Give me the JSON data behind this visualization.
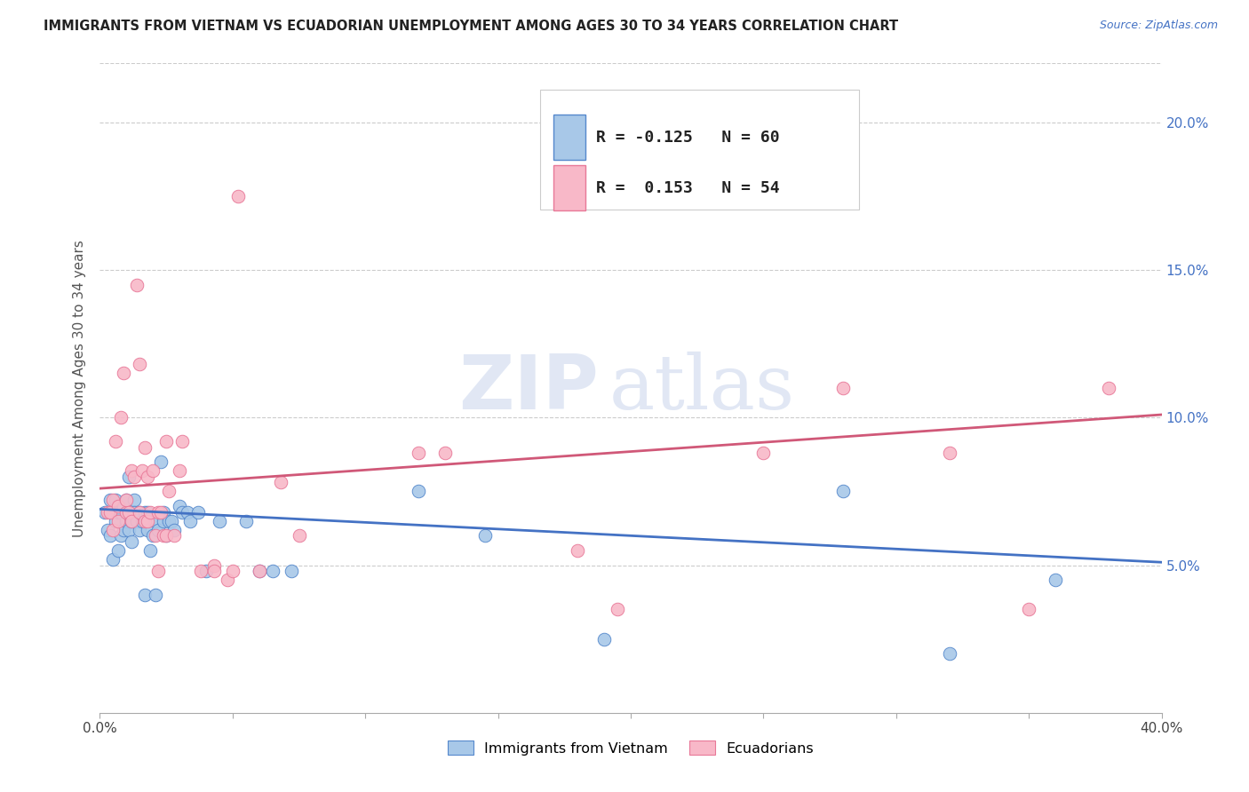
{
  "title": "IMMIGRANTS FROM VIETNAM VS ECUADORIAN UNEMPLOYMENT AMONG AGES 30 TO 34 YEARS CORRELATION CHART",
  "source": "Source: ZipAtlas.com",
  "ylabel": "Unemployment Among Ages 30 to 34 years",
  "ylabel_right_ticks": [
    "20.0%",
    "15.0%",
    "10.0%",
    "5.0%"
  ],
  "ylabel_right_vals": [
    0.2,
    0.15,
    0.1,
    0.05
  ],
  "xlim": [
    0.0,
    0.4
  ],
  "ylim": [
    0.0,
    0.22
  ],
  "watermark_zip": "ZIP",
  "watermark_atlas": "atlas",
  "legend_blue_R": "-0.125",
  "legend_blue_N": "60",
  "legend_pink_R": "0.153",
  "legend_pink_N": "54",
  "blue_color": "#a8c8e8",
  "pink_color": "#f8b8c8",
  "blue_edge_color": "#5588cc",
  "pink_edge_color": "#e87898",
  "blue_line_color": "#4472c4",
  "pink_line_color": "#d05878",
  "blue_scatter": [
    [
      0.002,
      0.068
    ],
    [
      0.003,
      0.062
    ],
    [
      0.004,
      0.06
    ],
    [
      0.004,
      0.072
    ],
    [
      0.005,
      0.068
    ],
    [
      0.005,
      0.052
    ],
    [
      0.006,
      0.072
    ],
    [
      0.006,
      0.065
    ],
    [
      0.007,
      0.068
    ],
    [
      0.007,
      0.055
    ],
    [
      0.008,
      0.06
    ],
    [
      0.008,
      0.068
    ],
    [
      0.009,
      0.062
    ],
    [
      0.009,
      0.07
    ],
    [
      0.01,
      0.065
    ],
    [
      0.01,
      0.072
    ],
    [
      0.011,
      0.062
    ],
    [
      0.011,
      0.08
    ],
    [
      0.012,
      0.058
    ],
    [
      0.012,
      0.065
    ],
    [
      0.013,
      0.068
    ],
    [
      0.013,
      0.072
    ],
    [
      0.013,
      0.068
    ],
    [
      0.014,
      0.065
    ],
    [
      0.015,
      0.062
    ],
    [
      0.015,
      0.068
    ],
    [
      0.016,
      0.065
    ],
    [
      0.017,
      0.04
    ],
    [
      0.017,
      0.068
    ],
    [
      0.018,
      0.062
    ],
    [
      0.018,
      0.068
    ],
    [
      0.019,
      0.055
    ],
    [
      0.02,
      0.06
    ],
    [
      0.021,
      0.04
    ],
    [
      0.021,
      0.065
    ],
    [
      0.022,
      0.062
    ],
    [
      0.023,
      0.085
    ],
    [
      0.024,
      0.065
    ],
    [
      0.024,
      0.068
    ],
    [
      0.025,
      0.06
    ],
    [
      0.026,
      0.065
    ],
    [
      0.027,
      0.065
    ],
    [
      0.028,
      0.062
    ],
    [
      0.03,
      0.07
    ],
    [
      0.031,
      0.068
    ],
    [
      0.033,
      0.068
    ],
    [
      0.034,
      0.065
    ],
    [
      0.037,
      0.068
    ],
    [
      0.04,
      0.048
    ],
    [
      0.045,
      0.065
    ],
    [
      0.055,
      0.065
    ],
    [
      0.06,
      0.048
    ],
    [
      0.065,
      0.048
    ],
    [
      0.072,
      0.048
    ],
    [
      0.12,
      0.075
    ],
    [
      0.145,
      0.06
    ],
    [
      0.19,
      0.025
    ],
    [
      0.28,
      0.075
    ],
    [
      0.32,
      0.02
    ],
    [
      0.36,
      0.045
    ]
  ],
  "pink_scatter": [
    [
      0.003,
      0.068
    ],
    [
      0.004,
      0.068
    ],
    [
      0.005,
      0.062
    ],
    [
      0.005,
      0.072
    ],
    [
      0.006,
      0.092
    ],
    [
      0.007,
      0.07
    ],
    [
      0.007,
      0.065
    ],
    [
      0.008,
      0.1
    ],
    [
      0.009,
      0.115
    ],
    [
      0.01,
      0.068
    ],
    [
      0.01,
      0.072
    ],
    [
      0.011,
      0.068
    ],
    [
      0.012,
      0.082
    ],
    [
      0.012,
      0.065
    ],
    [
      0.013,
      0.08
    ],
    [
      0.014,
      0.145
    ],
    [
      0.015,
      0.068
    ],
    [
      0.015,
      0.118
    ],
    [
      0.016,
      0.082
    ],
    [
      0.017,
      0.09
    ],
    [
      0.017,
      0.065
    ],
    [
      0.018,
      0.08
    ],
    [
      0.018,
      0.065
    ],
    [
      0.019,
      0.068
    ],
    [
      0.02,
      0.082
    ],
    [
      0.021,
      0.06
    ],
    [
      0.022,
      0.048
    ],
    [
      0.022,
      0.068
    ],
    [
      0.023,
      0.068
    ],
    [
      0.024,
      0.06
    ],
    [
      0.025,
      0.06
    ],
    [
      0.025,
      0.092
    ],
    [
      0.026,
      0.075
    ],
    [
      0.028,
      0.06
    ],
    [
      0.03,
      0.082
    ],
    [
      0.031,
      0.092
    ],
    [
      0.038,
      0.048
    ],
    [
      0.043,
      0.05
    ],
    [
      0.043,
      0.048
    ],
    [
      0.048,
      0.045
    ],
    [
      0.05,
      0.048
    ],
    [
      0.052,
      0.175
    ],
    [
      0.06,
      0.048
    ],
    [
      0.068,
      0.078
    ],
    [
      0.075,
      0.06
    ],
    [
      0.12,
      0.088
    ],
    [
      0.13,
      0.088
    ],
    [
      0.18,
      0.055
    ],
    [
      0.195,
      0.035
    ],
    [
      0.25,
      0.088
    ],
    [
      0.28,
      0.11
    ],
    [
      0.32,
      0.088
    ],
    [
      0.35,
      0.035
    ],
    [
      0.38,
      0.11
    ]
  ],
  "blue_trendline_x": [
    0.0,
    0.4
  ],
  "blue_trendline_y": [
    0.069,
    0.051
  ],
  "pink_trendline_x": [
    0.0,
    0.4
  ],
  "pink_trendline_y": [
    0.076,
    0.101
  ]
}
